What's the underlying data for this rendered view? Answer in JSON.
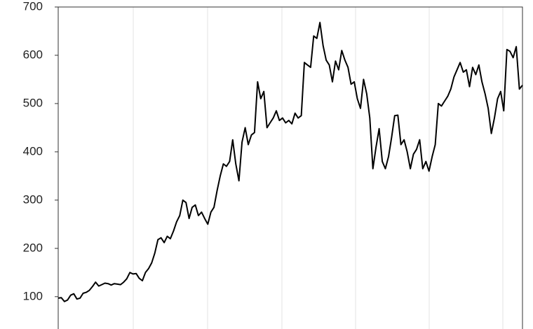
{
  "chart_data": {
    "type": "line",
    "color": "#000000",
    "values": [
      97,
      98,
      90,
      93,
      103,
      106,
      95,
      97,
      107,
      109,
      113,
      121,
      130,
      122,
      125,
      128,
      127,
      124,
      127,
      126,
      125,
      130,
      137,
      150,
      147,
      148,
      138,
      133,
      150,
      158,
      170,
      190,
      218,
      222,
      212,
      225,
      220,
      236,
      255,
      268,
      300,
      295,
      262,
      285,
      290,
      268,
      275,
      262,
      250,
      275,
      285,
      320,
      350,
      375,
      370,
      380,
      425,
      375,
      340,
      420,
      450,
      415,
      435,
      440,
      545,
      510,
      525,
      450,
      460,
      470,
      485,
      465,
      470,
      460,
      465,
      458,
      480,
      470,
      475,
      585,
      580,
      575,
      640,
      635,
      668,
      620,
      590,
      580,
      545,
      588,
      570,
      610,
      590,
      575,
      540,
      545,
      510,
      490,
      550,
      520,
      470,
      365,
      410,
      448,
      380,
      365,
      390,
      430,
      475,
      476,
      415,
      425,
      400,
      365,
      395,
      405,
      425,
      365,
      380,
      360,
      390,
      415,
      500,
      495,
      505,
      515,
      530,
      555,
      570,
      585,
      565,
      570,
      535,
      575,
      560,
      580,
      545,
      520,
      490,
      438,
      470,
      510,
      525,
      485,
      612,
      608,
      595,
      618,
      530,
      538
    ],
    "ylim": [
      33,
      700
    ],
    "yticks": [
      100,
      200,
      300,
      400,
      500,
      600,
      700
    ],
    "grid": true
  }
}
